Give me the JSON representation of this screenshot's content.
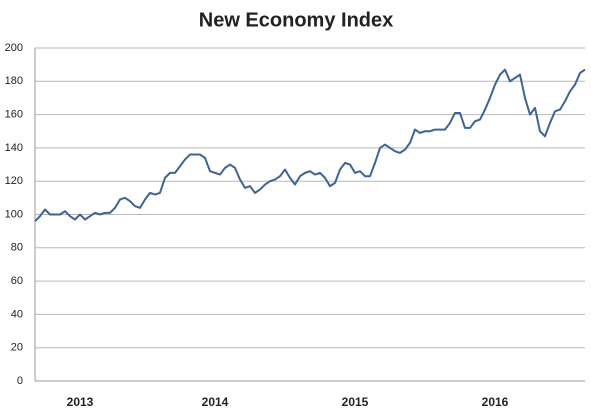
{
  "chart_data": {
    "type": "line",
    "title": "New Economy Index",
    "categories": [
      null,
      null,
      null,
      null,
      null,
      null,
      null,
      null,
      null,
      "2013",
      null,
      null,
      null,
      null,
      null,
      null,
      null,
      null,
      null,
      null,
      null,
      null,
      null,
      null,
      null,
      null,
      null,
      null,
      null,
      null,
      null,
      null,
      null,
      null,
      null,
      null,
      "2014",
      null,
      null,
      null,
      null,
      null,
      null,
      null,
      null,
      null,
      null,
      null,
      null,
      null,
      null,
      null,
      null,
      null,
      null,
      null,
      null,
      null,
      null,
      null,
      null,
      null,
      null,
      null,
      "2015",
      null,
      null,
      null,
      null,
      null,
      null,
      null,
      null,
      null,
      null,
      null,
      null,
      null,
      null,
      null,
      null,
      null,
      null,
      null,
      null,
      null,
      null,
      null,
      null,
      null,
      null,
      null,
      "2016",
      null,
      null,
      null,
      null,
      null,
      null,
      null,
      null,
      null,
      null,
      null,
      null,
      null,
      null,
      null,
      null,
      null,
      null
    ],
    "series": [
      {
        "name": "New Economy Index",
        "color": "#3d6494",
        "values": [
          96,
          99,
          103,
          100,
          100,
          100,
          102,
          99,
          97,
          100,
          97,
          99,
          101,
          100,
          101,
          101,
          104,
          109,
          110,
          108,
          105,
          104,
          109,
          113,
          112,
          113,
          122,
          125,
          125,
          129,
          133,
          136,
          136,
          136,
          134,
          126,
          125,
          124,
          128,
          130,
          128,
          121,
          116,
          117,
          113,
          115,
          118,
          120,
          121,
          123,
          127,
          122,
          118,
          123,
          125,
          126,
          124,
          125,
          122,
          117,
          119,
          127,
          131,
          130,
          125,
          126,
          123,
          123,
          131,
          140,
          142,
          140,
          138,
          137,
          139,
          143,
          151,
          149,
          150,
          150,
          151,
          151,
          151,
          155,
          161,
          161,
          152,
          152,
          156,
          157,
          163,
          170,
          178,
          184,
          187,
          180,
          182,
          184,
          170,
          160,
          164,
          150,
          147,
          155,
          162,
          163,
          168,
          174,
          178,
          185,
          187
        ]
      }
    ],
    "ylim": [
      0,
      200
    ],
    "yticks": [
      0,
      20,
      40,
      60,
      80,
      100,
      120,
      140,
      160,
      180,
      200
    ],
    "grid": true
  }
}
